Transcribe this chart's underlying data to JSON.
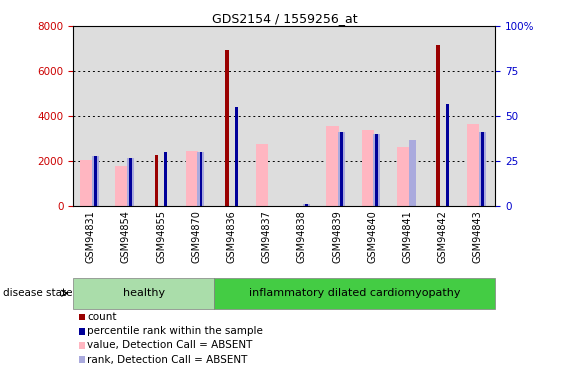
{
  "title": "GDS2154 / 1559256_at",
  "samples": [
    "GSM94831",
    "GSM94854",
    "GSM94855",
    "GSM94870",
    "GSM94836",
    "GSM94837",
    "GSM94838",
    "GSM94839",
    "GSM94840",
    "GSM94841",
    "GSM94842",
    "GSM94843"
  ],
  "count_values": [
    0,
    0,
    2300,
    0,
    6950,
    0,
    0,
    0,
    0,
    0,
    7150,
    0
  ],
  "percentile_values": [
    28,
    27,
    30,
    30,
    55,
    0,
    1,
    41,
    40,
    0,
    57,
    41
  ],
  "value_absent": [
    2050,
    1800,
    0,
    2450,
    0,
    2750,
    0,
    3550,
    3400,
    2650,
    0,
    3650
  ],
  "rank_absent": [
    28,
    27,
    0,
    30,
    0,
    0,
    1,
    41,
    40,
    37,
    0,
    41
  ],
  "ylim_left": [
    0,
    8000
  ],
  "ylim_right": [
    0,
    100
  ],
  "yticks_left": [
    0,
    2000,
    4000,
    6000,
    8000
  ],
  "yticks_right": [
    0,
    25,
    50,
    75,
    100
  ],
  "count_color": "#990000",
  "percentile_color": "#000099",
  "value_absent_color": "#FFB6C1",
  "rank_absent_color": "#AAAADD",
  "healthy_color": "#AADDAA",
  "disease_color": "#44CC44",
  "axis_color_left": "#CC0000",
  "axis_color_right": "#0000CC",
  "plot_bg_color": "#DDDDDD",
  "healthy_count": 4,
  "disease_count": 8
}
